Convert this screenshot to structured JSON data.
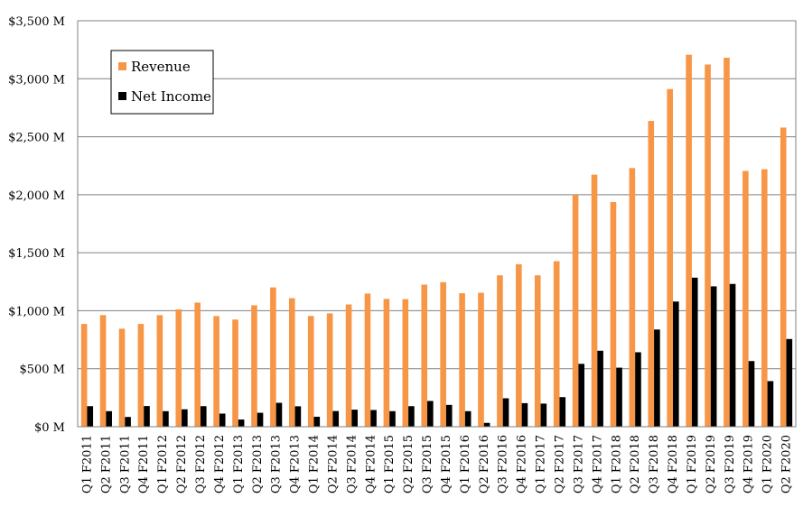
{
  "chart_data": {
    "type": "bar",
    "title": "",
    "xlabel": "",
    "ylabel": "",
    "ylim": [
      0,
      3500
    ],
    "yticks": [
      0,
      500,
      1000,
      1500,
      2000,
      2500,
      3000,
      3500
    ],
    "ytick_labels": [
      "$0 M",
      "$500 M",
      "$1,000 M",
      "$1,500 M",
      "$2,000 M",
      "$2,500 M",
      "$3,000 M",
      "$3,500 M"
    ],
    "grid": true,
    "legend_position": "top-left",
    "categories": [
      "Q1 F2011",
      "Q2 F2011",
      "Q3 F2011",
      "Q4 F2011",
      "Q1 F2012",
      "Q2 F2012",
      "Q3 F2012",
      "Q4 F2012",
      "Q1 F2013",
      "Q2 F2013",
      "Q3 F2013",
      "Q4 F2013",
      "Q1 F2014",
      "Q2 F2014",
      "Q3 F2014",
      "Q4 F2014",
      "Q1 F2015",
      "Q2 F2015",
      "Q3 F2015",
      "Q4 F2015",
      "Q1 F2016",
      "Q2 F2016",
      "Q3 F2016",
      "Q4 F2016",
      "Q1 F2017",
      "Q2 F2017",
      "Q3 F2017",
      "Q4 F2017",
      "Q1 F2018",
      "Q2 F2018",
      "Q3 F2018",
      "Q4 F2018",
      "Q1 F2019",
      "Q2 F2019",
      "Q3 F2019",
      "Q4 F2019",
      "Q1 F2020",
      "Q2 F2020"
    ],
    "series": [
      {
        "name": "Revenue",
        "color": "#F79646",
        "values": [
          886,
          962,
          845,
          886,
          962,
          1012,
          1070,
          954,
          924,
          1047,
          1201,
          1108,
          955,
          977,
          1054,
          1148,
          1102,
          1100,
          1225,
          1246,
          1151,
          1155,
          1305,
          1401,
          1305,
          1427,
          2000,
          2173,
          1937,
          2230,
          2636,
          2911,
          3207,
          3123,
          3181,
          2205,
          2220,
          2579
        ]
      },
      {
        "name": "Net Income",
        "color": "#000000",
        "values": [
          177,
          134,
          84,
          178,
          134,
          150,
          177,
          113,
          62,
          120,
          206,
          176,
          86,
          135,
          147,
          144,
          134,
          177,
          222,
          188,
          134,
          33,
          245,
          203,
          199,
          255,
          542,
          655,
          509,
          642,
          838,
          1079,
          1285,
          1210,
          1231,
          566,
          393,
          756
        ]
      }
    ]
  }
}
